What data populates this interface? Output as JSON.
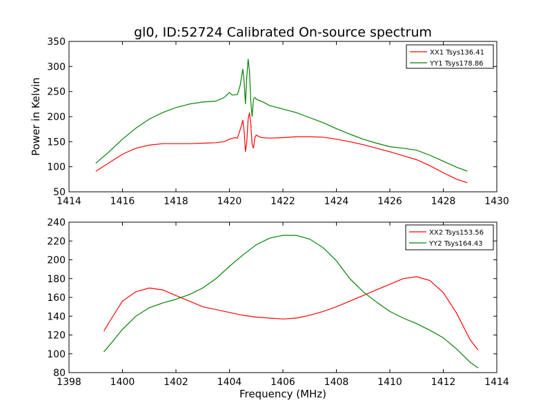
{
  "figure": {
    "title": "gl0, ID:52724 Calibrated On-source spectrum",
    "ylabel": "Power in Kelvin",
    "xlabel": "Frequency (MHz)"
  },
  "chart_data": [
    {
      "type": "line",
      "xlim": [
        1414,
        1430
      ],
      "ylim": [
        50,
        350
      ],
      "xticks": [
        "1414",
        "1416",
        "1418",
        "1420",
        "1422",
        "1424",
        "1426",
        "1428",
        "1430"
      ],
      "yticks": [
        "50",
        "100",
        "150",
        "200",
        "250",
        "300",
        "350"
      ],
      "legend_position": "top-right",
      "grid": false,
      "series": [
        {
          "name": "XX1 Tsys136.41",
          "color": "#ff0000",
          "points": [
            [
              1415.0,
              91
            ],
            [
              1415.5,
              108
            ],
            [
              1416.0,
              125
            ],
            [
              1416.5,
              137
            ],
            [
              1417.0,
              143
            ],
            [
              1417.5,
              146
            ],
            [
              1418.0,
              146
            ],
            [
              1418.5,
              146
            ],
            [
              1419.0,
              147
            ],
            [
              1419.5,
              148
            ],
            [
              1419.8,
              150
            ],
            [
              1420.0,
              155
            ],
            [
              1420.2,
              158
            ],
            [
              1420.3,
              157
            ],
            [
              1420.45,
              182
            ],
            [
              1420.5,
              193
            ],
            [
              1420.55,
              172
            ],
            [
              1420.6,
              130
            ],
            [
              1420.65,
              150
            ],
            [
              1420.7,
              195
            ],
            [
              1420.75,
              208
            ],
            [
              1420.8,
              185
            ],
            [
              1420.85,
              145
            ],
            [
              1420.9,
              137
            ],
            [
              1420.95,
              158
            ],
            [
              1421.0,
              163
            ],
            [
              1421.2,
              158
            ],
            [
              1421.5,
              157
            ],
            [
              1422.0,
              158
            ],
            [
              1422.5,
              160
            ],
            [
              1423.0,
              160
            ],
            [
              1423.5,
              159
            ],
            [
              1424.0,
              155
            ],
            [
              1424.5,
              150
            ],
            [
              1425.0,
              144
            ],
            [
              1425.5,
              137
            ],
            [
              1426.0,
              130
            ],
            [
              1426.5,
              122
            ],
            [
              1427.0,
              114
            ],
            [
              1427.5,
              102
            ],
            [
              1428.0,
              88
            ],
            [
              1428.5,
              75
            ],
            [
              1428.9,
              68
            ]
          ]
        },
        {
          "name": "YY1 Tsys178.86",
          "color": "#008000",
          "points": [
            [
              1415.0,
              107
            ],
            [
              1415.5,
              130
            ],
            [
              1416.0,
              155
            ],
            [
              1416.5,
              177
            ],
            [
              1417.0,
              195
            ],
            [
              1417.5,
              208
            ],
            [
              1418.0,
              218
            ],
            [
              1418.5,
              225
            ],
            [
              1419.0,
              229
            ],
            [
              1419.5,
              231
            ],
            [
              1419.8,
              238
            ],
            [
              1420.0,
              248
            ],
            [
              1420.1,
              243
            ],
            [
              1420.3,
              244
            ],
            [
              1420.4,
              262
            ],
            [
              1420.5,
              295
            ],
            [
              1420.55,
              270
            ],
            [
              1420.6,
              225
            ],
            [
              1420.65,
              280
            ],
            [
              1420.7,
              315
            ],
            [
              1420.75,
              290
            ],
            [
              1420.8,
              230
            ],
            [
              1420.85,
              200
            ],
            [
              1420.9,
              235
            ],
            [
              1420.95,
              238
            ],
            [
              1421.0,
              235
            ],
            [
              1421.3,
              228
            ],
            [
              1421.5,
              222
            ],
            [
              1422.0,
              215
            ],
            [
              1422.5,
              208
            ],
            [
              1423.0,
              198
            ],
            [
              1423.5,
              188
            ],
            [
              1424.0,
              176
            ],
            [
              1424.5,
              165
            ],
            [
              1425.0,
              155
            ],
            [
              1425.5,
              147
            ],
            [
              1426.0,
              140
            ],
            [
              1426.5,
              137
            ],
            [
              1427.0,
              133
            ],
            [
              1427.5,
              123
            ],
            [
              1428.0,
              111
            ],
            [
              1428.5,
              99
            ],
            [
              1428.9,
              91
            ]
          ]
        }
      ]
    },
    {
      "type": "line",
      "xlim": [
        1398,
        1414
      ],
      "ylim": [
        80,
        240
      ],
      "xticks": [
        "1398",
        "1400",
        "1402",
        "1404",
        "1406",
        "1408",
        "1410",
        "1412",
        "1414"
      ],
      "yticks": [
        "80",
        "100",
        "120",
        "140",
        "160",
        "180",
        "200",
        "220",
        "240"
      ],
      "legend_position": "top-right",
      "grid": false,
      "series": [
        {
          "name": "XX2 Tsys153.56",
          "color": "#ff0000",
          "points": [
            [
              1399.3,
              124
            ],
            [
              1399.6,
              138
            ],
            [
              1400.0,
              156
            ],
            [
              1400.5,
              166
            ],
            [
              1401.0,
              170
            ],
            [
              1401.5,
              168
            ],
            [
              1402.0,
              162
            ],
            [
              1402.5,
              156
            ],
            [
              1403.0,
              150
            ],
            [
              1403.5,
              147
            ],
            [
              1404.0,
              144
            ],
            [
              1404.5,
              141
            ],
            [
              1405.0,
              139
            ],
            [
              1405.5,
              138
            ],
            [
              1406.0,
              137
            ],
            [
              1406.5,
              138
            ],
            [
              1407.0,
              141
            ],
            [
              1407.5,
              145
            ],
            [
              1408.0,
              150
            ],
            [
              1408.5,
              156
            ],
            [
              1409.0,
              162
            ],
            [
              1409.5,
              168
            ],
            [
              1410.0,
              174
            ],
            [
              1410.5,
              180
            ],
            [
              1411.0,
              182
            ],
            [
              1411.5,
              178
            ],
            [
              1412.0,
              165
            ],
            [
              1412.5,
              143
            ],
            [
              1413.0,
              115
            ],
            [
              1413.3,
              104
            ]
          ]
        },
        {
          "name": "YY2 Tsys164.43",
          "color": "#008000",
          "points": [
            [
              1399.3,
              102
            ],
            [
              1399.6,
              112
            ],
            [
              1400.0,
              126
            ],
            [
              1400.5,
              140
            ],
            [
              1401.0,
              149
            ],
            [
              1401.5,
              154
            ],
            [
              1402.0,
              158
            ],
            [
              1402.5,
              163
            ],
            [
              1403.0,
              170
            ],
            [
              1403.5,
              180
            ],
            [
              1404.0,
              193
            ],
            [
              1404.5,
              205
            ],
            [
              1405.0,
              216
            ],
            [
              1405.5,
              223
            ],
            [
              1406.0,
              226
            ],
            [
              1406.5,
              226
            ],
            [
              1407.0,
              222
            ],
            [
              1407.5,
              213
            ],
            [
              1408.0,
              199
            ],
            [
              1408.5,
              180
            ],
            [
              1409.0,
              166
            ],
            [
              1409.5,
              155
            ],
            [
              1410.0,
              145
            ],
            [
              1410.5,
              138
            ],
            [
              1411.0,
              132
            ],
            [
              1411.5,
              125
            ],
            [
              1412.0,
              117
            ],
            [
              1412.5,
              105
            ],
            [
              1413.0,
              91
            ],
            [
              1413.3,
              85
            ]
          ]
        }
      ]
    }
  ]
}
